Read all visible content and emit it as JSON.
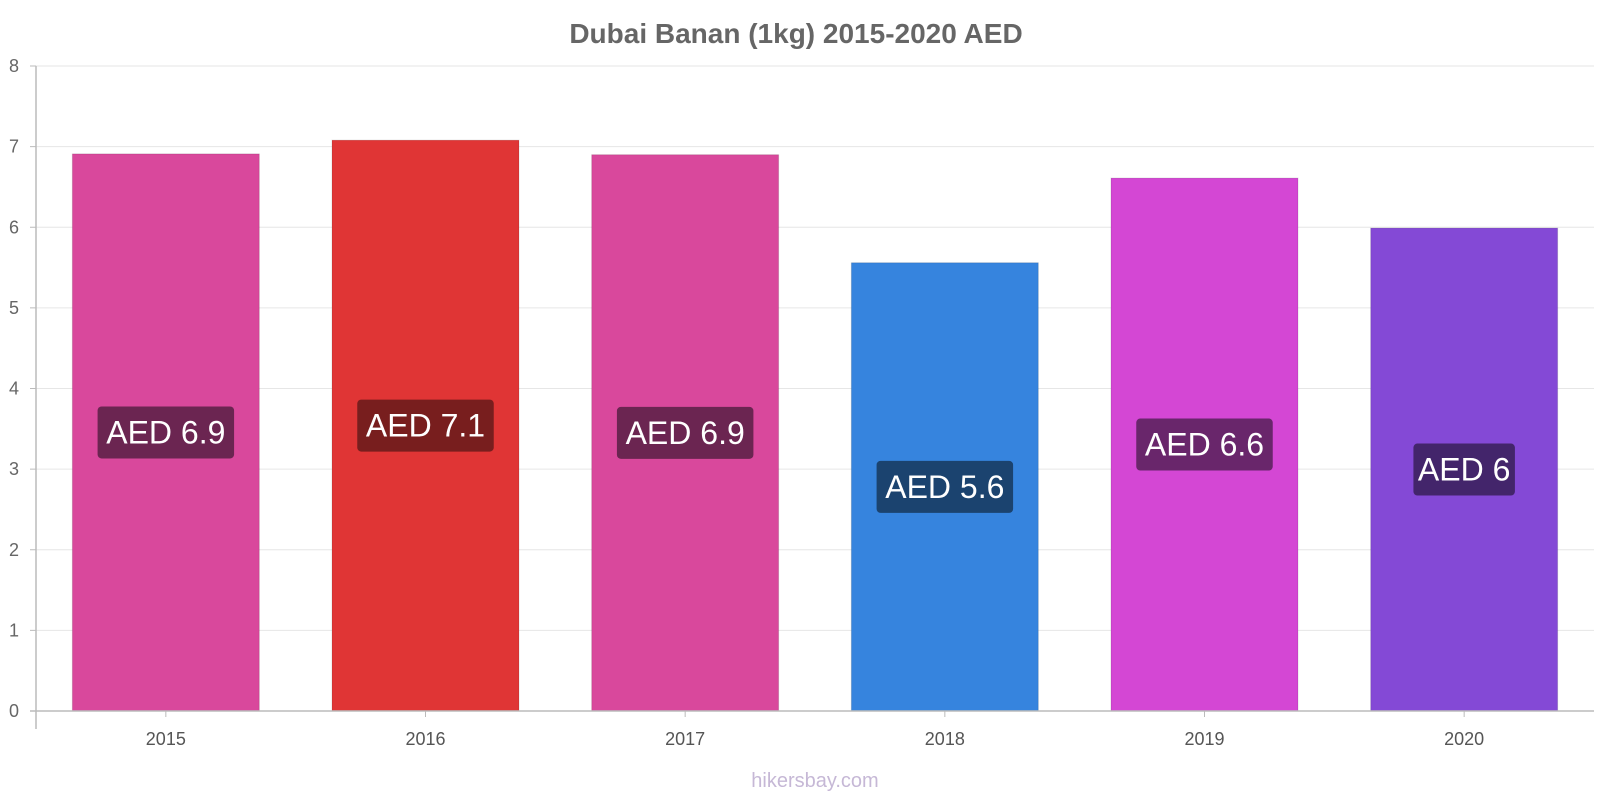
{
  "chart_data": {
    "type": "bar",
    "title": "Dubai Banan (1kg) 2015-2020 AED",
    "xlabel": "",
    "ylabel": "",
    "categories": [
      "2015",
      "2016",
      "2017",
      "2018",
      "2019",
      "2020"
    ],
    "values": [
      6.91,
      7.08,
      6.9,
      5.56,
      6.61,
      5.99
    ],
    "data_labels": [
      "AED 6.9",
      "AED 7.1",
      "AED 6.9",
      "AED 5.6",
      "AED 6.6",
      "AED 6"
    ],
    "ylim": [
      0,
      8
    ],
    "yticks": [
      "0",
      "1",
      "2",
      "3",
      "4",
      "5",
      "6",
      "7",
      "8"
    ],
    "grid": true,
    "legend": "none",
    "bar_colors": [
      "#d9489c",
      "#e03535",
      "#d9489c",
      "#3684de",
      "#d447d4",
      "#8449d6"
    ],
    "label_colors": [
      "#6b2551",
      "#781e1e",
      "#6b2551",
      "#1b436f",
      "#69266b",
      "#43256b"
    ]
  },
  "watermark": "hikersbay.com"
}
